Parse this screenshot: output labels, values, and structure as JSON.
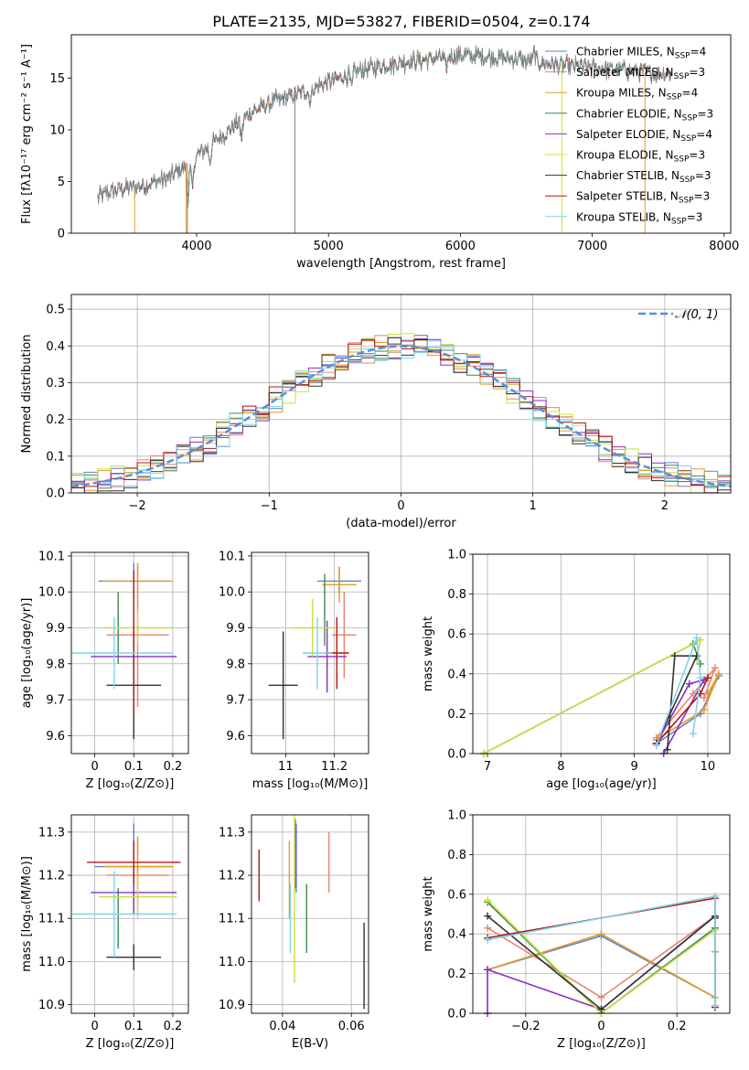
{
  "figure": {
    "title": "PLATE=2135, MJD=53827, FIBERID=0504, z=0.174"
  },
  "series_colors": [
    {
      "name": "Chabrier MILES",
      "nssp": "4",
      "color": "#5b84c4"
    },
    {
      "name": "Salpeter MILES",
      "nssp": "3",
      "color": "#e8856e"
    },
    {
      "name": "Kroupa MILES",
      "nssp": "4",
      "color": "#e89b2c"
    },
    {
      "name": "Chabrier ELODIE",
      "nssp": "3",
      "color": "#3e8a4e"
    },
    {
      "name": "Salpeter ELODIE",
      "nssp": "4",
      "color": "#8a2fc0"
    },
    {
      "name": "Kroupa ELODIE",
      "nssp": "3",
      "color": "#c8e040"
    },
    {
      "name": "Chabrier STELIB",
      "nssp": "3",
      "color": "#333333"
    },
    {
      "name": "Salpeter STELIB",
      "nssp": "3",
      "color": "#b01818"
    },
    {
      "name": "Kroupa STELIB",
      "nssp": "3",
      "color": "#7fd3e8"
    }
  ],
  "chart_data": [
    {
      "id": "spectrum",
      "type": "line",
      "title": "PLATE=2135, MJD=53827, FIBERID=0504, z=0.174",
      "xlabel": "wavelength [Angstrom, rest frame]",
      "ylabel": "Flux [fλ10⁻¹⁷ erg cm⁻² s⁻¹ A⁻¹]",
      "xlim": [
        3050,
        8050
      ],
      "ylim": [
        0,
        19.2
      ],
      "xticks": [
        4000,
        5000,
        6000,
        7000,
        8000
      ],
      "yticks": [
        0,
        5,
        10,
        15
      ],
      "grid": false,
      "legend_position": "top-right",
      "legend": [
        "Chabrier MILES, N_SSP=4",
        "Salpeter MILES, N_SSP=3",
        "Kroupa MILES, N_SSP=4",
        "Chabrier ELODIE, N_SSP=3",
        "Salpeter ELODIE, N_SSP=4",
        "Kroupa ELODIE, N_SSP=3",
        "Chabrier STELIB, N_SSP=3",
        "Salpeter STELIB, N_SSP=3",
        "Kroupa STELIB, N_SSP=3"
      ],
      "continuum": {
        "x": [
          3250,
          3400,
          3600,
          3800,
          4000,
          4200,
          4400,
          4600,
          4800,
          5000,
          5200,
          5400,
          5600,
          5800,
          6000,
          6200,
          6400,
          6600,
          6800,
          7000,
          7200,
          7400,
          7600
        ],
        "y": [
          3.5,
          4.2,
          4.6,
          5.4,
          7.5,
          9.5,
          11.6,
          12.8,
          13.6,
          14.6,
          15.6,
          16.2,
          16.6,
          16.9,
          17.2,
          17.1,
          16.9,
          16.5,
          16.2,
          16.0,
          15.8,
          15.6,
          15.4
        ]
      }
    },
    {
      "id": "residuals",
      "type": "bar",
      "xlabel": "(data-model)/error",
      "ylabel": "Normed distribution",
      "xlim": [
        -2.5,
        2.5
      ],
      "ylim": [
        0,
        0.54
      ],
      "xticks": [
        -2,
        -1,
        0,
        1,
        2
      ],
      "yticks": [
        0.0,
        0.1,
        0.2,
        0.3,
        0.4,
        0.5
      ],
      "grid": true,
      "legend_position": "top-right",
      "reference_curve": {
        "name": "𝒩(0, 1)",
        "mean": 0,
        "sigma": 1
      },
      "bin_width": 0.1,
      "bin_start": -2.5,
      "bins": 50
    },
    {
      "id": "age-vs-Z",
      "type": "scatter",
      "xlabel": "Z [log₁₀(Z/Z⊙)]",
      "ylabel": "age  [log₁₀(age/yr)]",
      "xlim": [
        -0.06,
        0.24
      ],
      "ylim": [
        9.55,
        10.11
      ],
      "xticks": [
        0.0,
        0.1,
        0.2
      ],
      "yticks": [
        9.6,
        9.7,
        9.8,
        9.9,
        10.0,
        10.1
      ],
      "grid": true,
      "points": [
        {
          "x": 0.1,
          "xerr": 0.09,
          "y": 10.03,
          "yerr": 0.05
        },
        {
          "x": 0.11,
          "xerr": 0.08,
          "y": 9.88,
          "yerr": 0.2
        },
        {
          "x": 0.11,
          "xerr": 0.09,
          "y": 10.03,
          "yerr": 0.05
        },
        {
          "x": 0.06,
          "xerr": 0.0,
          "y": 9.9,
          "yerr": 0.1
        },
        {
          "x": 0.1,
          "xerr": 0.11,
          "y": 9.82,
          "yerr": 0.08
        },
        {
          "x": 0.11,
          "xerr": 0.09,
          "y": 9.9,
          "yerr": 0.05
        },
        {
          "x": 0.1,
          "xerr": 0.07,
          "y": 9.74,
          "yerr": 0.15
        },
        {
          "x": 0.1,
          "xerr": 0.0,
          "y": 9.86,
          "yerr": 0.2
        },
        {
          "x": 0.05,
          "xerr": 0.15,
          "y": 9.83,
          "yerr": 0.1
        }
      ]
    },
    {
      "id": "age-vs-mass",
      "type": "scatter",
      "xlabel": "mass [log₁₀(M/M⊙)]",
      "ylabel": "",
      "xlim": [
        10.86,
        11.34
      ],
      "ylim": [
        9.55,
        10.11
      ],
      "xticks": [
        11.0,
        11.2
      ],
      "yticks": [
        9.6,
        9.7,
        9.8,
        9.9,
        10.0,
        10.1
      ],
      "grid": true,
      "points": [
        {
          "x": 11.22,
          "xerr": 0.09,
          "y": 10.03,
          "yerr": 0.04
        },
        {
          "x": 11.24,
          "xerr": 0.05,
          "y": 9.88,
          "yerr": 0.12
        },
        {
          "x": 11.22,
          "xerr": 0.07,
          "y": 10.02,
          "yerr": 0.05
        },
        {
          "x": 11.16,
          "xerr": 0.0,
          "y": 9.95,
          "yerr": 0.1
        },
        {
          "x": 11.17,
          "xerr": 0.08,
          "y": 9.82,
          "yerr": 0.1
        },
        {
          "x": 11.11,
          "xerr": 0.09,
          "y": 9.9,
          "yerr": 0.08
        },
        {
          "x": 10.99,
          "xerr": 0.06,
          "y": 9.74,
          "yerr": 0.15
        },
        {
          "x": 11.21,
          "xerr": 0.05,
          "y": 9.83,
          "yerr": 0.1
        },
        {
          "x": 11.13,
          "xerr": 0.06,
          "y": 9.83,
          "yerr": 0.1
        }
      ]
    },
    {
      "id": "mass-weight-vs-age",
      "type": "line",
      "xlabel": "age  [log₁₀(age/yr)]",
      "ylabel": "mass weight",
      "xlim": [
        6.8,
        10.3
      ],
      "ylim": [
        0,
        1.0
      ],
      "xticks": [
        7,
        8,
        9,
        10
      ],
      "yticks": [
        0.0,
        0.2,
        0.4,
        0.6,
        0.8,
        1.0
      ],
      "grid": true,
      "series": [
        {
          "x": [
            9.3,
            9.9,
            10.15,
            10.0
          ],
          "y": [
            0.05,
            0.2,
            0.39,
            0.3
          ]
        },
        {
          "x": [
            9.3,
            9.8,
            10.1,
            9.95
          ],
          "y": [
            0.08,
            0.3,
            0.43,
            0.28
          ]
        },
        {
          "x": [
            9.3,
            9.95,
            10.15,
            10.0
          ],
          "y": [
            0.07,
            0.22,
            0.4,
            0.3
          ]
        },
        {
          "x": [
            6.95,
            9.8,
            9.9
          ],
          "y": [
            0.0,
            0.55,
            0.45
          ]
        },
        {
          "x": [
            9.3,
            9.75,
            9.95,
            9.4
          ],
          "y": [
            0.05,
            0.35,
            0.37,
            0.0
          ]
        },
        {
          "x": [
            6.95,
            9.9,
            9.85
          ],
          "y": [
            0.0,
            0.57,
            0.47
          ]
        },
        {
          "x": [
            9.45,
            9.55,
            9.85,
            9.3
          ],
          "y": [
            0.02,
            0.49,
            0.49,
            0.05
          ]
        },
        {
          "x": [
            9.3,
            9.9,
            10.0
          ],
          "y": [
            0.05,
            0.3,
            0.38
          ]
        },
        {
          "x": [
            9.3,
            9.85,
            9.9,
            9.8
          ],
          "y": [
            0.04,
            0.58,
            0.38,
            0.1
          ]
        }
      ]
    },
    {
      "id": "mass-vs-Z",
      "type": "scatter",
      "xlabel": "Z [log₁₀(Z/Z⊙)]",
      "ylabel": "mass [log₁₀(M/M⊙)]",
      "xlim": [
        -0.06,
        0.24
      ],
      "ylim": [
        10.88,
        11.34
      ],
      "xticks": [
        0.0,
        0.1,
        0.2
      ],
      "yticks": [
        10.9,
        11.0,
        11.1,
        11.2,
        11.3
      ],
      "grid": true,
      "points": [
        {
          "x": 0.1,
          "xerr": 0.1,
          "y": 11.22,
          "yerr": 0.1
        },
        {
          "x": 0.11,
          "xerr": 0.08,
          "y": 11.2,
          "yerr": 0.09
        },
        {
          "x": 0.11,
          "xerr": 0.09,
          "y": 11.22,
          "yerr": 0.07
        },
        {
          "x": 0.06,
          "xerr": 0.0,
          "y": 11.1,
          "yerr": 0.07
        },
        {
          "x": 0.1,
          "xerr": 0.11,
          "y": 11.16,
          "yerr": 0.05
        },
        {
          "x": 0.11,
          "xerr": 0.1,
          "y": 11.15,
          "yerr": 0.05
        },
        {
          "x": 0.1,
          "xerr": 0.07,
          "y": 11.01,
          "yerr": 0.03
        },
        {
          "x": 0.1,
          "xerr": 0.12,
          "y": 11.23,
          "yerr": 0.05
        },
        {
          "x": 0.05,
          "xerr": 0.16,
          "y": 11.11,
          "yerr": 0.1
        }
      ]
    },
    {
      "id": "mass-vs-EBV",
      "type": "scatter",
      "xlabel": "E(B-V)",
      "ylabel": "",
      "xlim": [
        0.031,
        0.065
      ],
      "ylim": [
        10.88,
        11.34
      ],
      "xticks": [
        0.04,
        0.06
      ],
      "yticks": [
        10.9,
        11.0,
        11.1,
        11.2,
        11.3
      ],
      "grid": true,
      "points": [
        {
          "x": 0.044,
          "y": 11.24,
          "yerr": 0.08
        },
        {
          "x": 0.0535,
          "y": 11.23,
          "yerr": 0.07
        },
        {
          "x": 0.042,
          "y": 11.19,
          "yerr": 0.09
        },
        {
          "x": 0.047,
          "y": 11.1,
          "yerr": 0.08
        },
        {
          "x": 0.0437,
          "y": 11.25,
          "yerr": 0.08
        },
        {
          "x": 0.0435,
          "y": 11.15,
          "yerr": 0.2
        },
        {
          "x": 0.0637,
          "y": 10.99,
          "yerr": 0.1
        },
        {
          "x": 0.0332,
          "y": 11.2,
          "yerr": 0.06
        },
        {
          "x": 0.0423,
          "y": 11.1,
          "yerr": 0.08
        }
      ]
    },
    {
      "id": "mass-weight-vs-Z",
      "type": "line",
      "xlabel": "Z [log₁₀(Z/Z⊙)]",
      "ylabel": "mass weight",
      "xlim": [
        -0.34,
        0.34
      ],
      "ylim": [
        0,
        1.0
      ],
      "xticks": [
        -0.2,
        0.0,
        0.2
      ],
      "yticks": [
        0.0,
        0.2,
        0.4,
        0.6,
        0.8,
        1.0
      ],
      "grid": true,
      "series": [
        {
          "x": [
            -0.301,
            0.0,
            0.301,
            0.301
          ],
          "y": [
            0.22,
            0.39,
            0.08,
            0.31
          ]
        },
        {
          "x": [
            -0.301,
            0.0,
            0.301,
            0.301
          ],
          "y": [
            0.43,
            0.08,
            0.49,
            0.43
          ]
        },
        {
          "x": [
            -0.301,
            0.0,
            0.301,
            0.301
          ],
          "y": [
            0.22,
            0.4,
            0.08,
            0.31
          ]
        },
        {
          "x": [
            -0.301,
            0.0,
            0.301
          ],
          "y": [
            0.56,
            0.0,
            0.43
          ]
        },
        {
          "x": [
            -0.301,
            -0.301,
            0.0,
            0.301
          ],
          "y": [
            0.0,
            0.22,
            0.02,
            0.49
          ]
        },
        {
          "x": [
            -0.301,
            0.0,
            0.301
          ],
          "y": [
            0.57,
            0.0,
            0.42
          ]
        },
        {
          "x": [
            -0.301,
            0.0,
            0.301,
            0.301
          ],
          "y": [
            0.49,
            0.02,
            0.49,
            0.48
          ]
        },
        {
          "x": [
            -0.301,
            0.301,
            0.301
          ],
          "y": [
            0.38,
            0.58,
            0.03
          ]
        },
        {
          "x": [
            -0.301,
            0.301,
            0.301
          ],
          "y": [
            0.37,
            0.59,
            0.04
          ]
        }
      ]
    }
  ]
}
